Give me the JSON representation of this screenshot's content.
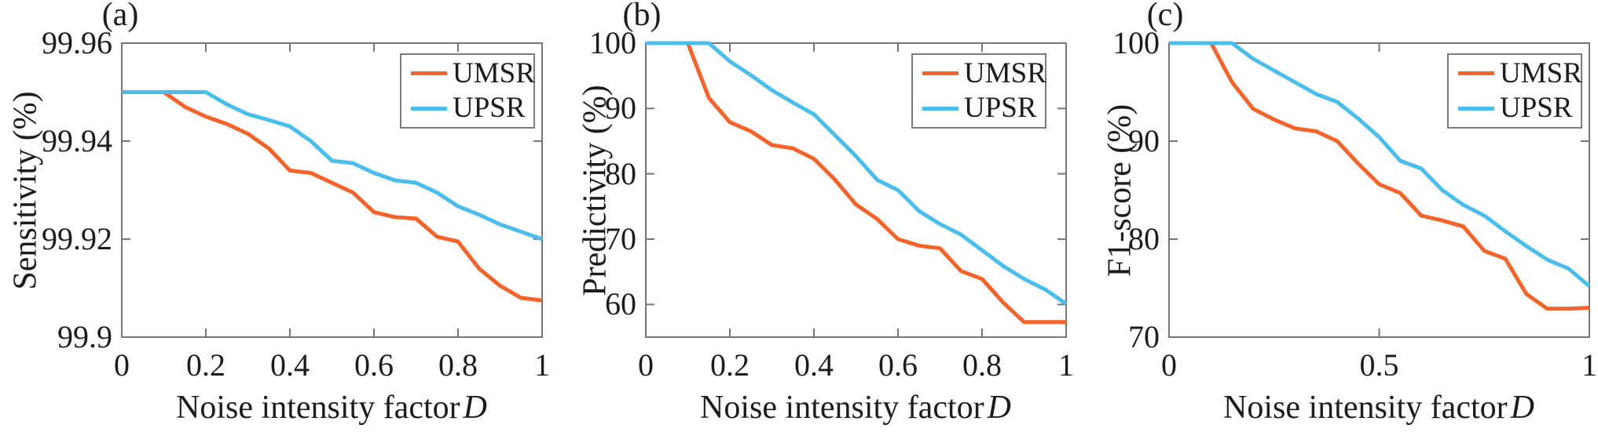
{
  "figure": {
    "background": "#ffffff",
    "text_color": "#1c1c1c",
    "axis_color": "#767676",
    "umsr_color": "#F4632A",
    "upsr_color": "#49BDEB"
  },
  "chart_data": [
    {
      "type": "line",
      "panel_label": "(a)",
      "title": "",
      "ylabel": "Sensitivity (%)",
      "xlabel_text": "Noise intensity factor",
      "xlabel_var": "D",
      "xlim": [
        0,
        1
      ],
      "ylim": [
        99.9,
        99.96
      ],
      "xticks": [
        0,
        0.2,
        0.4,
        0.6,
        0.8,
        1
      ],
      "xtick_labels": [
        "0",
        "0.2",
        "0.4",
        "0.6",
        "0.8",
        "1"
      ],
      "yticks": [
        99.9,
        99.92,
        99.94,
        99.96
      ],
      "ytick_labels": [
        "99.9",
        "99.92",
        "99.94",
        "99.96"
      ],
      "grid": false,
      "legend_position": "northeast",
      "x": [
        0,
        0.05,
        0.1,
        0.15,
        0.2,
        0.25,
        0.3,
        0.35,
        0.4,
        0.45,
        0.5,
        0.55,
        0.6,
        0.65,
        0.7,
        0.75,
        0.8,
        0.85,
        0.9,
        0.95,
        1
      ],
      "series": [
        {
          "name": "UMSR",
          "color": "#F4632A",
          "values": [
            99.95,
            99.95,
            99.95,
            99.947,
            99.945,
            99.9435,
            99.9415,
            99.9385,
            99.934,
            99.9335,
            99.9315,
            99.9295,
            99.9255,
            99.9245,
            99.9242,
            99.9205,
            99.9195,
            99.914,
            99.9105,
            99.908,
            99.9075
          ]
        },
        {
          "name": "UPSR",
          "color": "#49BDEB",
          "values": [
            99.95,
            99.95,
            99.95,
            99.95,
            99.95,
            99.9475,
            99.9455,
            99.9443,
            99.943,
            99.94,
            99.936,
            99.9355,
            99.9335,
            99.932,
            99.9315,
            99.9295,
            99.9267,
            99.925,
            99.923,
            99.9215,
            99.92
          ]
        }
      ]
    },
    {
      "type": "line",
      "panel_label": "(b)",
      "title": "",
      "ylabel": "Predictivity (%)",
      "xlabel_text": "Noise intensity factor",
      "xlabel_var": "D",
      "xlim": [
        0,
        1
      ],
      "ylim": [
        55,
        100
      ],
      "xticks": [
        0,
        0.2,
        0.4,
        0.6,
        0.8,
        1
      ],
      "xtick_labels": [
        "0",
        "0.2",
        "0.4",
        "0.6",
        "0.8",
        "1"
      ],
      "yticks": [
        60,
        70,
        80,
        90,
        100
      ],
      "ytick_labels": [
        "60",
        "70",
        "80",
        "90",
        "100"
      ],
      "grid": false,
      "legend_position": "northeast",
      "x": [
        0,
        0.05,
        0.1,
        0.15,
        0.2,
        0.25,
        0.3,
        0.35,
        0.4,
        0.45,
        0.5,
        0.55,
        0.6,
        0.65,
        0.7,
        0.75,
        0.8,
        0.85,
        0.9,
        0.95,
        1
      ],
      "series": [
        {
          "name": "UMSR",
          "color": "#F4632A",
          "values": [
            100,
            100,
            100,
            91.6,
            87.9,
            86.5,
            84.4,
            83.9,
            82.3,
            79.1,
            75.3,
            73.1,
            70,
            69,
            68.6,
            65.1,
            63.9,
            60.3,
            57.3,
            57.3,
            57.3
          ]
        },
        {
          "name": "UPSR",
          "color": "#49BDEB",
          "values": [
            100,
            100,
            100,
            100,
            97.2,
            95.1,
            92.8,
            90.9,
            89.1,
            85.9,
            82.7,
            79.1,
            77.5,
            74.3,
            72.3,
            70.7,
            68.3,
            65.9,
            63.9,
            62.3,
            60.1
          ]
        }
      ]
    },
    {
      "type": "line",
      "panel_label": "(c)",
      "title": "",
      "ylabel": "F1-score (%)",
      "xlabel_text": "Noise intensity factor",
      "xlabel_var": "D",
      "xlim": [
        0,
        1
      ],
      "ylim": [
        70,
        100
      ],
      "xticks": [
        0,
        0.5,
        1
      ],
      "xtick_labels": [
        "0",
        "0.5",
        "1"
      ],
      "yticks": [
        70,
        80,
        90,
        100
      ],
      "ytick_labels": [
        "70",
        "80",
        "90",
        "100"
      ],
      "grid": false,
      "legend_position": "northeast",
      "x": [
        0,
        0.05,
        0.1,
        0.15,
        0.2,
        0.25,
        0.3,
        0.35,
        0.4,
        0.45,
        0.5,
        0.55,
        0.6,
        0.65,
        0.7,
        0.75,
        0.8,
        0.85,
        0.9,
        0.95,
        1
      ],
      "series": [
        {
          "name": "UMSR",
          "color": "#F4632A",
          "values": [
            100,
            100,
            100,
            96,
            93.3,
            92.2,
            91.3,
            91,
            90,
            87.7,
            85.6,
            84.7,
            82.4,
            81.9,
            81.3,
            78.8,
            78,
            74.4,
            72.9,
            72.9,
            73
          ]
        },
        {
          "name": "UPSR",
          "color": "#49BDEB",
          "values": [
            100,
            100,
            100,
            100,
            98.4,
            97.2,
            96,
            94.8,
            94,
            92.3,
            90.4,
            88,
            87.2,
            85,
            83.5,
            82.4,
            80.8,
            79.3,
            77.9,
            77,
            75.2
          ]
        }
      ]
    }
  ]
}
